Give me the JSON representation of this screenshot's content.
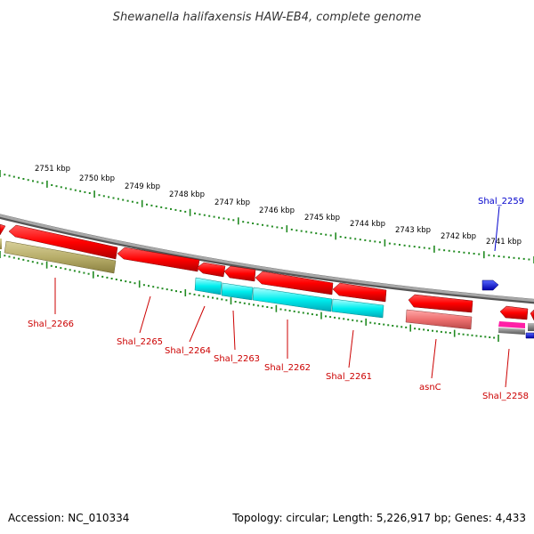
{
  "title": "Shewanella halifaxensis HAW-EB4, complete genome",
  "footer": {
    "accession": "Accession: NC_010334",
    "summary": "Topology: circular; Length: 5,226,917 bp; Genes: 4,433"
  },
  "ticks": [
    "2751 kbp",
    "2750 kbp",
    "2749 kbp",
    "2748 kbp",
    "2747 kbp",
    "2746 kbp",
    "2745 kbp",
    "2744 kbp",
    "2743 kbp",
    "2742 kbp",
    "2741 kbp"
  ],
  "genes": [
    {
      "name": "Shal_2266",
      "color": "#cc0000"
    },
    {
      "name": "Shal_2265",
      "color": "#cc0000"
    },
    {
      "name": "Shal_2264",
      "color": "#cc0000"
    },
    {
      "name": "Shal_2263",
      "color": "#cc0000"
    },
    {
      "name": "Shal_2262",
      "color": "#cc0000"
    },
    {
      "name": "Shal_2261",
      "color": "#cc0000"
    },
    {
      "name": "asnC",
      "color": "#cc0000"
    },
    {
      "name": "Shal_2258",
      "color": "#cc0000"
    },
    {
      "name": "Shal_2259",
      "color": "#0000cc"
    }
  ],
  "colors": {
    "cds": "#ff0000",
    "reverse_cds": "#0000ff",
    "backbone": "#888888",
    "ticks": "#228b22",
    "rna": "#00e5ee",
    "olive": "#b8b070",
    "pseudo": "#ee7777",
    "magenta": "#ff00aa"
  }
}
